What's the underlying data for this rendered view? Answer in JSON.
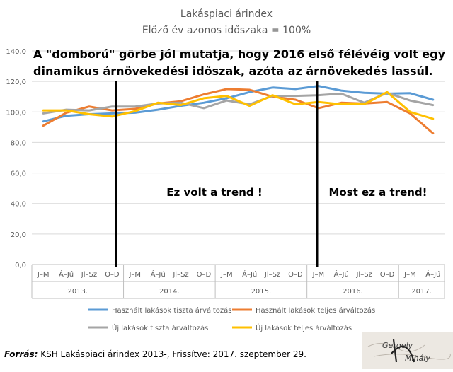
{
  "chart_data": {
    "type": "line",
    "title": "Lakáspiaci árindex",
    "subtitle": "Előző év azonos időszaka = 100%",
    "ylim": [
      0,
      140
    ],
    "yticks": [
      "0,0",
      "20,0",
      "40,0",
      "60,0",
      "80,0",
      "100,0",
      "120,0",
      "140,0"
    ],
    "grid": true,
    "legend_position": "bottom",
    "quarters": [
      "J–M",
      "Á–Jú",
      "Jl–Sz",
      "O–D",
      "J–M",
      "Á–Jú",
      "Jl–Sz",
      "O–D",
      "J–M",
      "Á–Jú",
      "Jl–Sz",
      "O–D",
      "J–M",
      "Á–Jú",
      "Jl–Sz",
      "O–D",
      "J–M",
      "Á–Jú"
    ],
    "years": [
      {
        "label": "2013.",
        "span": 4
      },
      {
        "label": "2014.",
        "span": 4
      },
      {
        "label": "2015.",
        "span": 4
      },
      {
        "label": "2016.",
        "span": 4
      },
      {
        "label": "2017.",
        "span": 2
      }
    ],
    "series": [
      {
        "name": "Használt lakások tiszta árváltozás",
        "color": "#5B9BD5",
        "values": [
          93.8,
          97.5,
          98.5,
          99.0,
          99.5,
          101.5,
          104.0,
          106.0,
          109.0,
          113.0,
          116.0,
          115.0,
          117.0,
          114.0,
          112.5,
          112.0,
          112.3,
          108.0
        ]
      },
      {
        "name": "Használt lakások teljes árváltozás",
        "color": "#ED7D31",
        "values": [
          91.0,
          99.5,
          103.5,
          101.0,
          102.0,
          105.5,
          107.0,
          111.5,
          115.0,
          114.5,
          110.0,
          108.0,
          102.5,
          106.0,
          105.5,
          106.5,
          99.0,
          86.0
        ]
      },
      {
        "name": "Új lakások tiszta árváltozás",
        "color": "#A5A5A5",
        "values": [
          99.0,
          101.5,
          101.0,
          103.5,
          103.5,
          105.5,
          106.0,
          102.5,
          107.5,
          105.0,
          110.5,
          110.5,
          111.0,
          112.0,
          106.0,
          112.5,
          107.5,
          104.5
        ]
      },
      {
        "name": "Új lakások teljes árváltozás",
        "color": "#FFC000",
        "values": [
          101.0,
          101.0,
          98.5,
          97.0,
          100.5,
          106.0,
          104.5,
          109.0,
          110.5,
          104.0,
          111.0,
          105.0,
          106.5,
          105.0,
          105.0,
          113.0,
          100.0,
          95.5
        ]
      }
    ],
    "annotations": [
      "A \"domború\" görbe jól mutatja, hogy 2016 első félévéig volt egy",
      "dinamikus árnövekedési időszak, azóta az árnövekedés lassúl."
    ],
    "trend_labels": [
      "Ez volt a trend !",
      "Most ez a trend!"
    ],
    "source_label": "Forrás:",
    "source_text": " KSH Lakáspiaci árindex 2013-, Frissítve: 2017. szeptember 29.",
    "signature_text": [
      "Gergely",
      "Mihály"
    ]
  }
}
